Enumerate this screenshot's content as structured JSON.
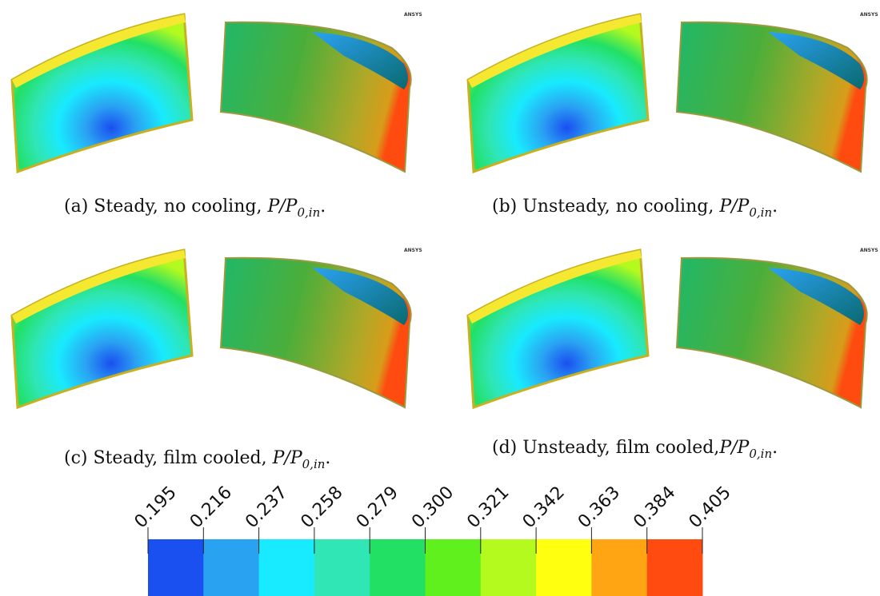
{
  "watermark": "ANSYS",
  "panels": [
    {
      "caption": "(a) Steady, no cooling, ",
      "formula": {
        "main": "P/P",
        "sub": "0,in",
        "end": "."
      }
    },
    {
      "caption": "(b) Unsteady, no cooling, ",
      "formula": {
        "main": "P/P",
        "sub": "0,in",
        "end": "."
      }
    },
    {
      "caption": "(c) Steady, film cooled, ",
      "formula": {
        "main": "P/P",
        "sub": "0,in",
        "end": "."
      }
    },
    {
      "caption": "(d) Unsteady, film cooled,",
      "formula": {
        "main": "P/P",
        "sub": "0,in",
        "end": "."
      }
    }
  ],
  "colorbar": {
    "ticks": [
      "0.195",
      "0.216",
      "0.237",
      "0.258",
      "0.279",
      "0.300",
      "0.321",
      "0.342",
      "0.363",
      "0.384",
      "0.405"
    ],
    "colors": [
      "#1a4ff0",
      "#2aa2f2",
      "#18eaff",
      "#2fe6b4",
      "#22e064",
      "#5ff01e",
      "#b4fa1e",
      "#ffff10",
      "#ffa412",
      "#ff4a10"
    ]
  }
}
